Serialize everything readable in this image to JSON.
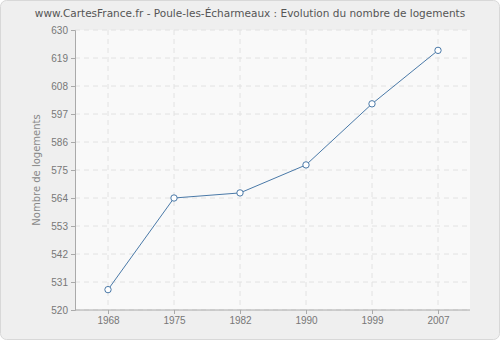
{
  "chart_data": {
    "type": "line",
    "title": "www.CartesFrance.fr - Poule-les-Écharmeaux : Evolution du nombre de logements",
    "y_label": "Nombre de logements",
    "categories": [
      "1968",
      "1975",
      "1982",
      "1990",
      "1999",
      "2007"
    ],
    "values": [
      528,
      564,
      566,
      577,
      601,
      622
    ],
    "color": "#4a79a8",
    "marker": "circle",
    "ylim": [
      520,
      630
    ],
    "yticks": [
      520,
      531,
      542,
      553,
      564,
      575,
      586,
      597,
      608,
      619,
      630
    ],
    "grid": true
  }
}
